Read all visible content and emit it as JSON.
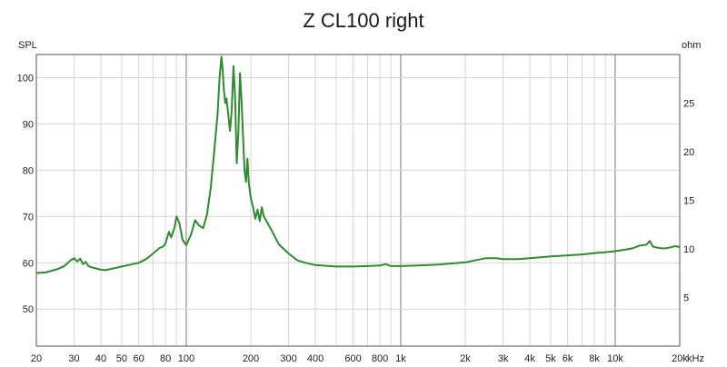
{
  "chart_data": {
    "type": "line",
    "title": "Z CL100 right",
    "ylabel_left": "SPL",
    "ylabel_right": "ohm",
    "x_unit": "kHz",
    "x_scale": "log",
    "xlim": [
      20,
      20000
    ],
    "ylim_left": [
      42,
      105
    ],
    "ylim_right": [
      0,
      30
    ],
    "grid": true,
    "x_ticks": [
      {
        "value": 20,
        "label": "20"
      },
      {
        "value": 30,
        "label": "30"
      },
      {
        "value": 40,
        "label": "40"
      },
      {
        "value": 50,
        "label": "50"
      },
      {
        "value": 60,
        "label": "60"
      },
      {
        "value": 80,
        "label": "80"
      },
      {
        "value": 100,
        "label": "100"
      },
      {
        "value": 200,
        "label": "200"
      },
      {
        "value": 300,
        "label": "300"
      },
      {
        "value": 400,
        "label": "400"
      },
      {
        "value": 600,
        "label": "600"
      },
      {
        "value": 800,
        "label": "800"
      },
      {
        "value": 1000,
        "label": "1k"
      },
      {
        "value": 2000,
        "label": "2k"
      },
      {
        "value": 3000,
        "label": "3k"
      },
      {
        "value": 4000,
        "label": "4k"
      },
      {
        "value": 5000,
        "label": "5k"
      },
      {
        "value": 6000,
        "label": "6k"
      },
      {
        "value": 8000,
        "label": "8k"
      },
      {
        "value": 10000,
        "label": "10k"
      },
      {
        "value": 20000,
        "label": "20k"
      }
    ],
    "y_ticks_left": [
      50,
      60,
      70,
      80,
      90,
      100
    ],
    "y_ticks_right": [
      5,
      10,
      15,
      20,
      25
    ],
    "series": [
      {
        "color": "#2e8b2e",
        "points": [
          [
            20,
            57.8
          ],
          [
            22,
            57.9
          ],
          [
            25,
            58.6
          ],
          [
            27,
            59.3
          ],
          [
            29,
            60.6
          ],
          [
            30,
            61.0
          ],
          [
            31,
            60.3
          ],
          [
            32,
            60.9
          ],
          [
            33,
            59.7
          ],
          [
            34,
            60.2
          ],
          [
            35,
            59.3
          ],
          [
            37,
            58.9
          ],
          [
            40,
            58.5
          ],
          [
            42,
            58.4
          ],
          [
            45,
            58.7
          ],
          [
            48,
            59.0
          ],
          [
            50,
            59.2
          ],
          [
            55,
            59.6
          ],
          [
            60,
            60.0
          ],
          [
            65,
            60.8
          ],
          [
            70,
            62.0
          ],
          [
            75,
            63.2
          ],
          [
            78,
            63.5
          ],
          [
            80,
            64.2
          ],
          [
            83,
            66.7
          ],
          [
            85,
            65.5
          ],
          [
            88,
            67.5
          ],
          [
            90,
            70.0
          ],
          [
            93,
            68.5
          ],
          [
            96,
            65.0
          ],
          [
            100,
            63.8
          ],
          [
            105,
            66.0
          ],
          [
            110,
            69.2
          ],
          [
            115,
            68.0
          ],
          [
            120,
            67.5
          ],
          [
            125,
            70.5
          ],
          [
            130,
            76.0
          ],
          [
            135,
            84.0
          ],
          [
            140,
            92.0
          ],
          [
            143,
            100.0
          ],
          [
            146,
            104.5
          ],
          [
            148,
            101.5
          ],
          [
            150,
            97.0
          ],
          [
            152,
            94.5
          ],
          [
            154,
            95.5
          ],
          [
            157,
            92.0
          ],
          [
            160,
            88.5
          ],
          [
            163,
            93.0
          ],
          [
            166,
            102.5
          ],
          [
            169,
            96.0
          ],
          [
            172,
            81.5
          ],
          [
            175,
            88.0
          ],
          [
            178,
            101.0
          ],
          [
            181,
            95.0
          ],
          [
            184,
            87.0
          ],
          [
            187,
            80.0
          ],
          [
            190,
            77.5
          ],
          [
            193,
            82.5
          ],
          [
            196,
            77.0
          ],
          [
            200,
            74.0
          ],
          [
            205,
            72.0
          ],
          [
            210,
            69.5
          ],
          [
            215,
            71.5
          ],
          [
            220,
            69.0
          ],
          [
            225,
            72.0
          ],
          [
            230,
            70.0
          ],
          [
            240,
            68.5
          ],
          [
            250,
            67.0
          ],
          [
            270,
            64.0
          ],
          [
            300,
            62.0
          ],
          [
            330,
            60.5
          ],
          [
            360,
            60.0
          ],
          [
            400,
            59.5
          ],
          [
            500,
            59.2
          ],
          [
            600,
            59.2
          ],
          [
            700,
            59.3
          ],
          [
            800,
            59.4
          ],
          [
            850,
            59.7
          ],
          [
            900,
            59.3
          ],
          [
            1000,
            59.3
          ],
          [
            1200,
            59.4
          ],
          [
            1500,
            59.6
          ],
          [
            2000,
            60.1
          ],
          [
            2500,
            61.0
          ],
          [
            2800,
            61.0
          ],
          [
            3000,
            60.8
          ],
          [
            3500,
            60.8
          ],
          [
            4000,
            61.0
          ],
          [
            5000,
            61.4
          ],
          [
            6000,
            61.6
          ],
          [
            7000,
            61.8
          ],
          [
            8000,
            62.1
          ],
          [
            9000,
            62.3
          ],
          [
            10000,
            62.5
          ],
          [
            11000,
            62.8
          ],
          [
            12000,
            63.1
          ],
          [
            13000,
            63.7
          ],
          [
            14000,
            63.9
          ],
          [
            14500,
            64.7
          ],
          [
            15000,
            63.5
          ],
          [
            16000,
            63.2
          ],
          [
            17000,
            63.1
          ],
          [
            18000,
            63.3
          ],
          [
            19000,
            63.6
          ],
          [
            20000,
            63.4
          ]
        ]
      }
    ]
  }
}
